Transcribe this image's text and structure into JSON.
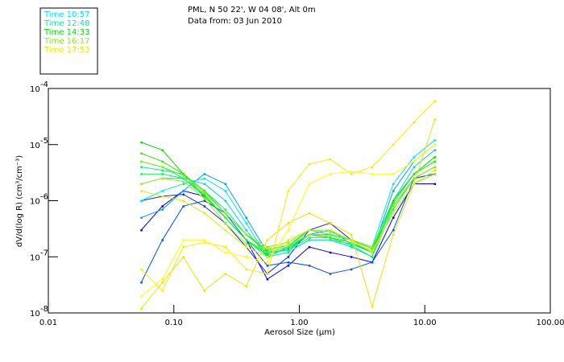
{
  "chart_data": {
    "type": "line",
    "title": "PML, N 50 22', W 04 08', Alt 0m",
    "subtitle": "Data from: 03 Jun 2010",
    "xlabel": "Aerosol Size (µm)",
    "ylabel": "dV/d(log R) (cm³/cm⁻³)",
    "xscale": "log",
    "yscale": "log",
    "xlim": [
      0.01,
      100
    ],
    "ylim": [
      1e-08,
      0.0001
    ],
    "xticks": [
      {
        "v": 0.01,
        "label": "0.01"
      },
      {
        "v": 0.1,
        "label": "0.10"
      },
      {
        "v": 1,
        "label": "1.00"
      },
      {
        "v": 10,
        "label": "10.00"
      },
      {
        "v": 100,
        "label": "100.00"
      }
    ],
    "yticks": [
      {
        "v": 0.0001,
        "base": "10",
        "exp": "-4"
      },
      {
        "v": 1e-05,
        "base": "10",
        "exp": "-5"
      },
      {
        "v": 1e-06,
        "base": "10",
        "exp": "-6"
      },
      {
        "v": 1e-07,
        "base": "10",
        "exp": "-7"
      },
      {
        "v": 1e-08,
        "base": "10",
        "exp": "-8"
      }
    ],
    "legend_position": "top-left",
    "legend": [
      {
        "label": "Time 10:57",
        "color": "#00e5ff"
      },
      {
        "label": "Time 12:48",
        "color": "#00f0a0"
      },
      {
        "label": "Time 14:33",
        "color": "#00e000"
      },
      {
        "label": "Time 16:17",
        "color": "#88ee00"
      },
      {
        "label": "Time 17:53",
        "color": "#e8e800"
      }
    ],
    "x": [
      0.055,
      0.081,
      0.119,
      0.175,
      0.257,
      0.377,
      0.555,
      0.815,
      1.2,
      1.76,
      2.59,
      3.8,
      5.6,
      8.2,
      12.0
    ],
    "series": [
      {
        "name": "blue-1",
        "color": "#0000ff",
        "values": [
          3e-07,
          8e-07,
          1.5e-06,
          1.2e-06,
          5e-07,
          2e-07,
          4e-08,
          7e-08,
          1.5e-07,
          1.2e-07,
          1e-07,
          8e-08,
          5e-07,
          2e-06,
          2e-06
        ]
      },
      {
        "name": "blue-2",
        "color": "#2020ff",
        "values": [
          1e-06,
          1.2e-06,
          1.3e-06,
          8e-07,
          4e-07,
          1.5e-07,
          5e-08,
          1e-07,
          3e-07,
          4e-07,
          2e-07,
          1.2e-07,
          8e-07,
          2.5e-06,
          3e-06
        ]
      },
      {
        "name": "blue-3",
        "color": "#0050ff",
        "values": [
          3.5e-08,
          2e-07,
          8e-07,
          1e-06,
          6e-07,
          2e-07,
          7e-08,
          8e-08,
          7e-08,
          5e-08,
          6e-08,
          8e-08,
          3e-07,
          2.5e-06,
          3e-06
        ]
      },
      {
        "name": "cyan-1",
        "color": "#00a0ff",
        "values": [
          5e-07,
          7e-07,
          1.5e-06,
          3e-06,
          2e-06,
          5e-07,
          1.2e-07,
          1.3e-07,
          2.5e-07,
          3e-07,
          1.7e-07,
          1.2e-07,
          1.5e-06,
          5e-06,
          1e-05
        ]
      },
      {
        "name": "cyan-2",
        "color": "#00e5ff",
        "values": [
          1e-06,
          1.5e-06,
          2e-06,
          2.5e-06,
          1.5e-06,
          4e-07,
          1e-07,
          1.5e-07,
          3e-07,
          2.5e-07,
          2e-07,
          1.5e-07,
          2e-06,
          6e-06,
          1.2e-05
        ]
      },
      {
        "name": "cyan-3",
        "color": "#00d0ff",
        "values": [
          2e-06,
          2.5e-06,
          2.5e-06,
          2e-06,
          1e-06,
          3e-07,
          1e-07,
          1.2e-07,
          2e-07,
          2e-07,
          1.5e-07,
          1e-07,
          1e-06,
          4e-06,
          8e-06
        ]
      },
      {
        "name": "teal-1",
        "color": "#00f0a0",
        "values": [
          4e-06,
          3.5e-06,
          3e-06,
          1.5e-06,
          7e-07,
          2.5e-07,
          1.2e-07,
          1.5e-07,
          2.5e-07,
          2.5e-07,
          2e-07,
          1.5e-07,
          1e-06,
          3e-06,
          5e-06
        ]
      },
      {
        "name": "teal-2",
        "color": "#00f0c0",
        "values": [
          5e-06,
          4e-06,
          2.5e-06,
          1.2e-06,
          5e-07,
          2e-07,
          1e-07,
          1.2e-07,
          2e-07,
          2e-07,
          1.7e-07,
          1.2e-07,
          8e-07,
          2.5e-06,
          4e-06
        ]
      },
      {
        "name": "green-1",
        "color": "#00e000",
        "values": [
          1.1e-05,
          8e-06,
          3e-06,
          1.2e-06,
          5e-07,
          2e-07,
          1.1e-07,
          1.4e-07,
          2.5e-07,
          2.2e-07,
          1.8e-07,
          1.2e-07,
          1e-06,
          3e-06,
          6e-06
        ]
      },
      {
        "name": "green-2",
        "color": "#30e800",
        "values": [
          7e-06,
          5e-06,
          3e-06,
          1.5e-06,
          6e-07,
          2.5e-07,
          1.3e-07,
          1.6e-07,
          3e-07,
          3e-07,
          2e-07,
          1.4e-07,
          9e-07,
          3e-06,
          5e-06
        ]
      },
      {
        "name": "green-3",
        "color": "#00ff40",
        "values": [
          3e-06,
          3e-06,
          2.5e-06,
          1.3e-06,
          5e-07,
          2e-07,
          1.2e-07,
          1.3e-07,
          2.2e-07,
          2.2e-07,
          1.6e-07,
          1e-07,
          7e-07,
          2.5e-06,
          4e-06
        ]
      },
      {
        "name": "lime-1",
        "color": "#88ee00",
        "values": [
          5e-06,
          4e-06,
          2.8e-06,
          1.4e-06,
          6e-07,
          2.5e-07,
          1.5e-07,
          1.8e-07,
          3e-07,
          2.8e-07,
          2e-07,
          1.5e-07,
          8e-07,
          2.5e-06,
          4e-06
        ]
      },
      {
        "name": "lime-2",
        "color": "#a0f000",
        "values": [
          2e-06,
          2.5e-06,
          2.2e-06,
          1.1e-06,
          4e-07,
          1.7e-07,
          1.4e-07,
          1.6e-07,
          2.5e-07,
          2.4e-07,
          1.8e-07,
          1.3e-07,
          6e-07,
          2e-06,
          3e-06
        ]
      },
      {
        "name": "yellow-1",
        "color": "#f0f000",
        "values": [
          6e-08,
          2.5e-08,
          1.5e-07,
          1.8e-07,
          1.5e-07,
          6e-08,
          5e-08,
          1.5e-06,
          4.5e-06,
          5.5e-06,
          3e-06,
          4e-06,
          1e-05,
          2.5e-05,
          6e-05
        ]
      },
      {
        "name": "yellow-2",
        "color": "#e8e800",
        "values": [
          1.2e-08,
          3.5e-08,
          1e-07,
          2.5e-08,
          5e-08,
          3e-08,
          2e-07,
          4e-07,
          6e-07,
          4e-07,
          2.5e-07,
          1.3e-08,
          2.5e-07,
          2e-06,
          2.8e-05
        ]
      },
      {
        "name": "yellow-3",
        "color": "#ffff00",
        "values": [
          2e-08,
          4e-08,
          2e-07,
          2e-07,
          1.2e-07,
          1e-07,
          8e-08,
          3e-07,
          2e-06,
          3e-06,
          3.3e-06,
          3e-06,
          3e-06,
          5e-06,
          1e-05
        ]
      },
      {
        "name": "yellow-4",
        "color": "#d8f000",
        "values": [
          1.5e-06,
          1.2e-06,
          1e-06,
          6e-07,
          3e-07,
          1.5e-07,
          1e-07,
          2e-07,
          3e-07,
          3e-07,
          2e-07,
          1.2e-07,
          6e-07,
          2e-06,
          3.5e-06
        ]
      }
    ]
  }
}
